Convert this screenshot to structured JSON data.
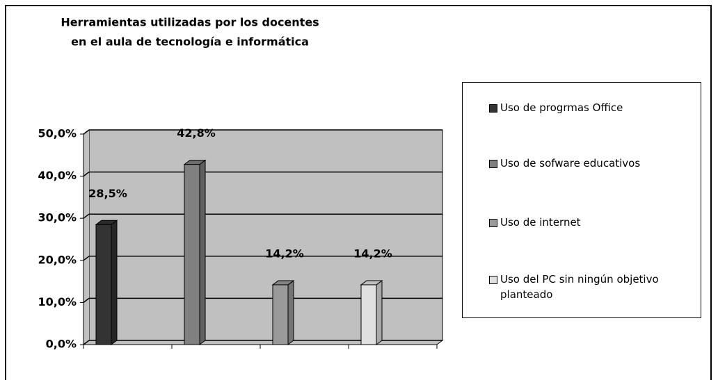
{
  "chart_data": {
    "type": "bar3d",
    "title": [
      "Herramientas utilizadas por los docentes",
      "en el aula de tecnología e informática"
    ],
    "series": [
      {
        "name": "Uso de progrmas Office",
        "color": "#333333",
        "values": [
          28.5
        ],
        "value_labels": [
          "28,5%"
        ]
      },
      {
        "name": "Uso de sofware educativos",
        "color": "#808080",
        "values": [
          42.8
        ],
        "value_labels": [
          "42,8%"
        ]
      },
      {
        "name": "Uso de internet",
        "color": "#9a9a9a",
        "values": [
          14.2
        ],
        "value_labels": [
          "14,2%"
        ]
      },
      {
        "name": "Uso del PC sin ningún objetivo planteado",
        "color": "#e0e0e0",
        "values": [
          14.2
        ],
        "value_labels": [
          "14,2%"
        ]
      }
    ],
    "ylim": [
      0,
      50
    ],
    "yticks": [
      {
        "value": 0,
        "label": "0,0%"
      },
      {
        "value": 10,
        "label": "10,0%"
      },
      {
        "value": 20,
        "label": "20,0%"
      },
      {
        "value": 30,
        "label": "30,0%"
      },
      {
        "value": 40,
        "label": "40,0%"
      },
      {
        "value": 50,
        "label": "50,0%"
      }
    ],
    "grid": true,
    "legend": "right"
  }
}
